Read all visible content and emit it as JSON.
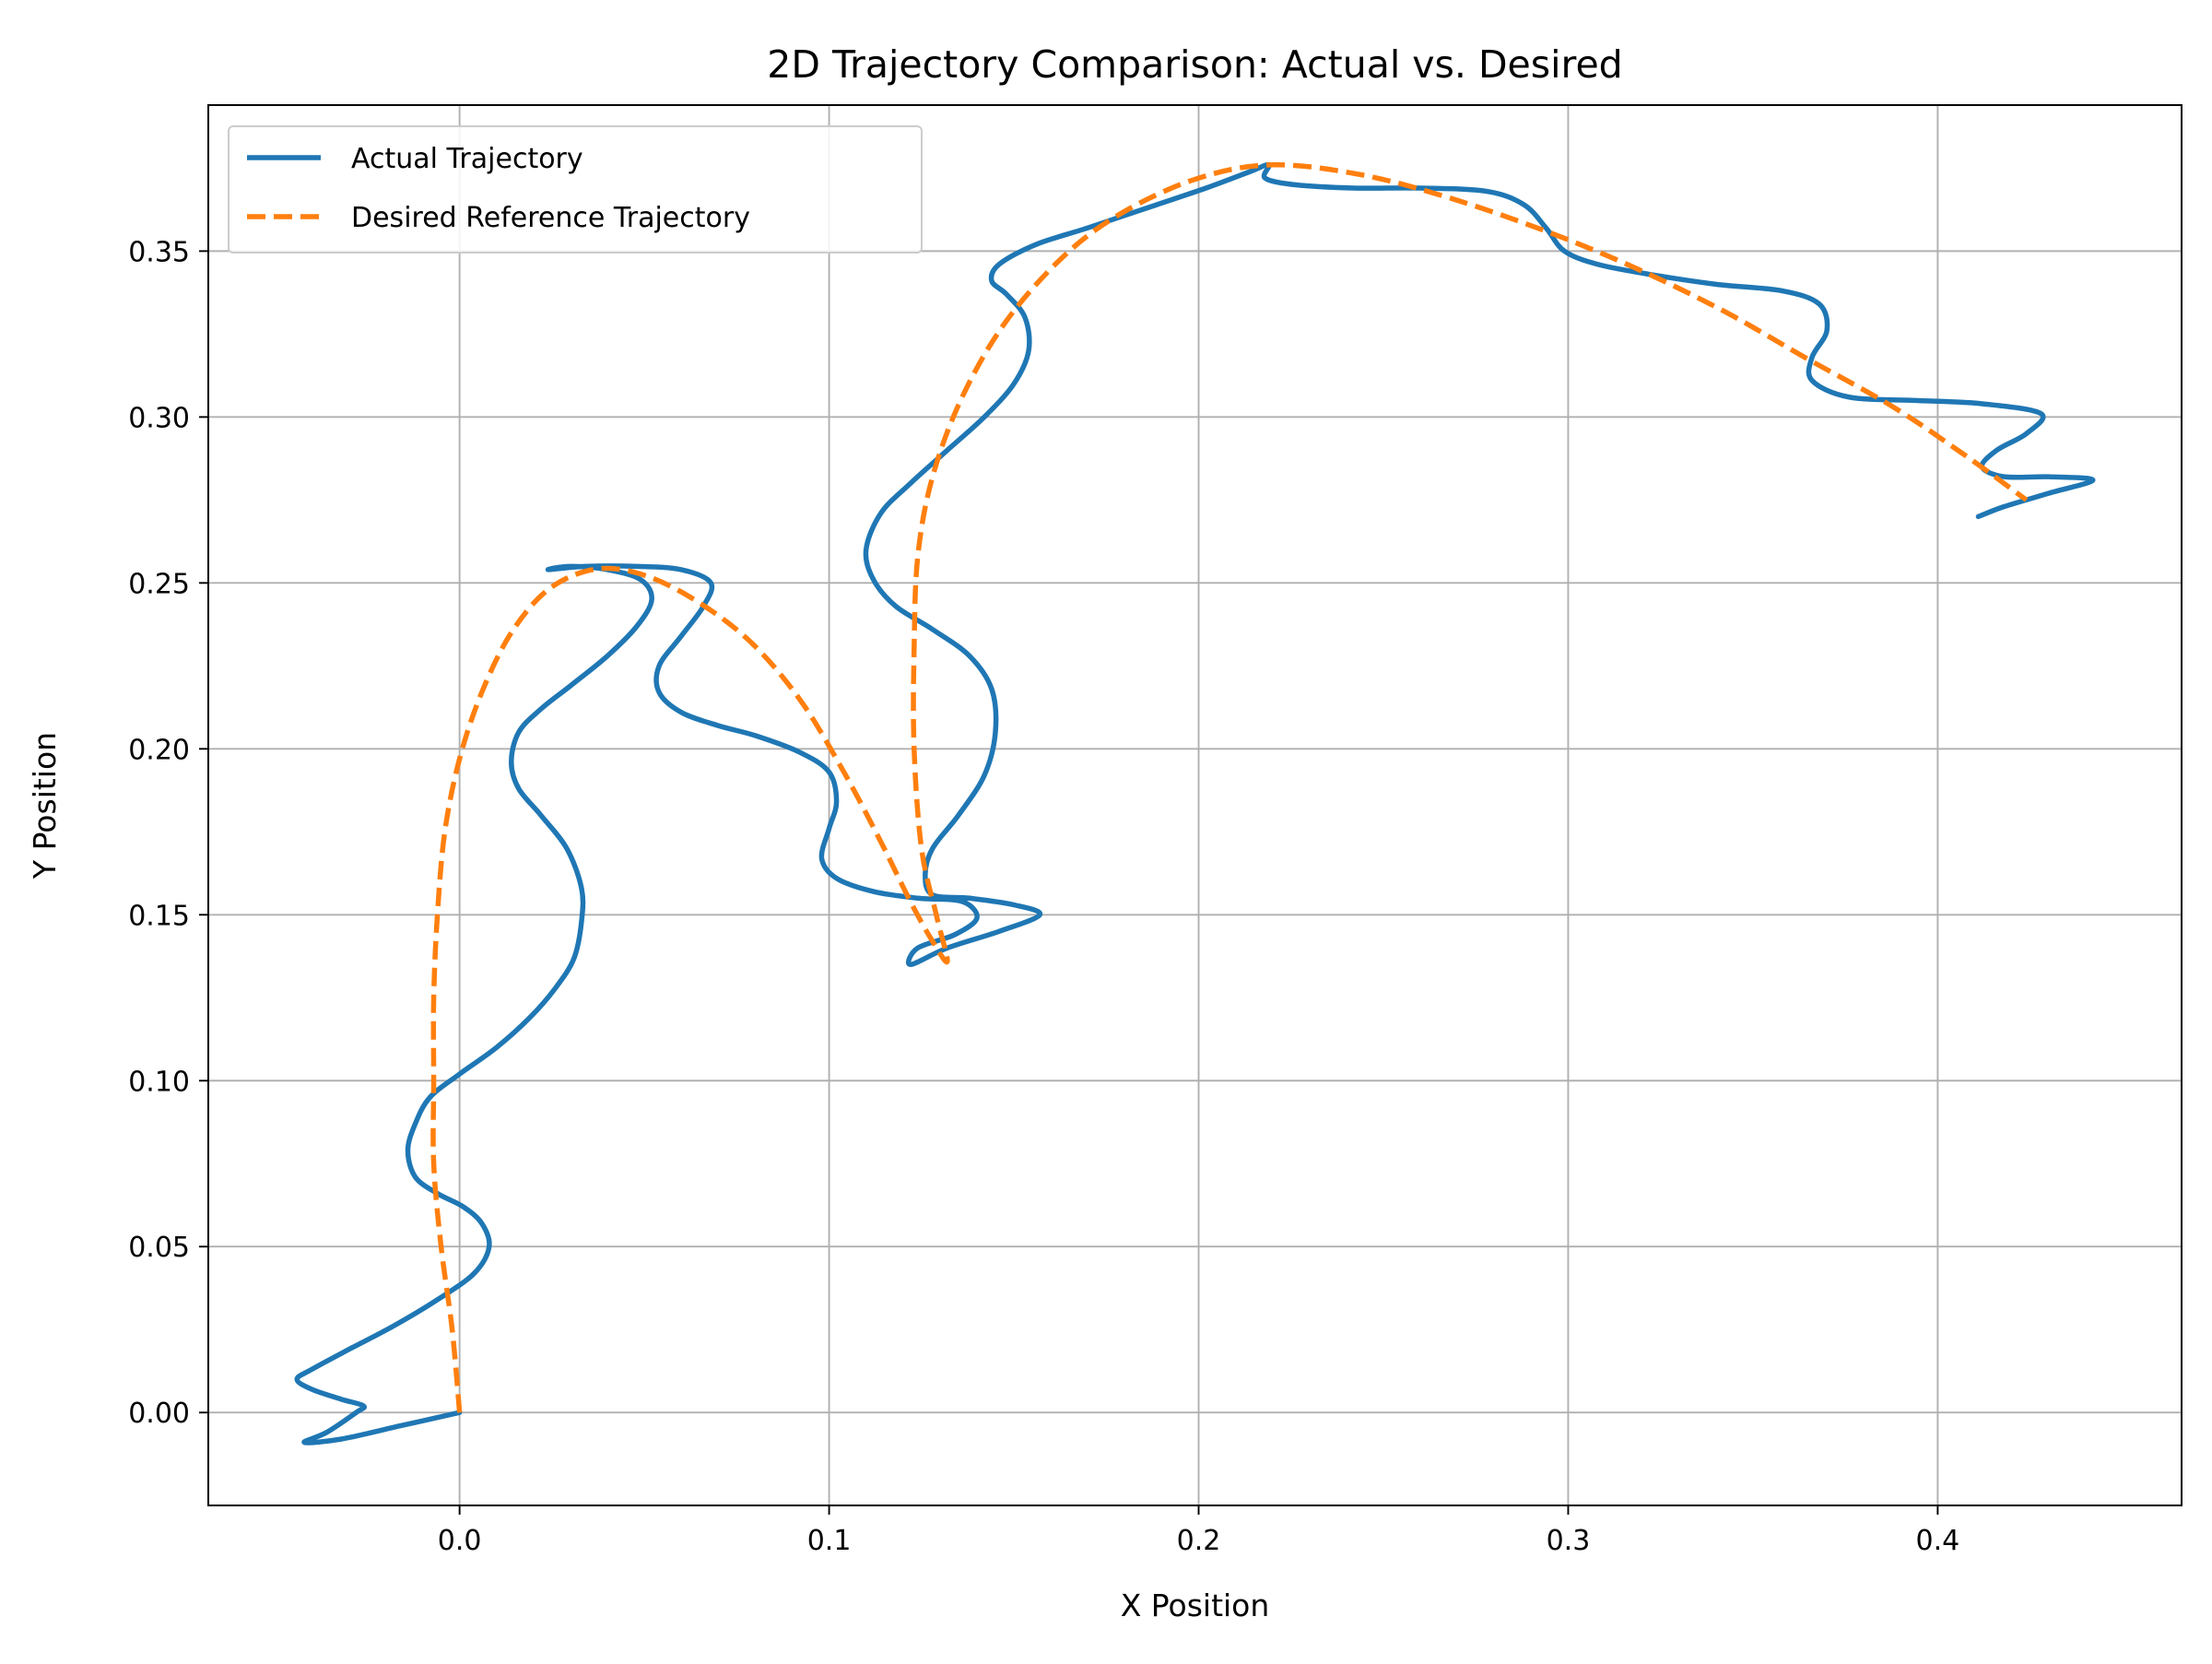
{
  "colors": {
    "actual": "#1f77b4",
    "desired": "#ff7f0e",
    "grid": "#b0b0b0",
    "axes": "#000000",
    "background": "#ffffff"
  },
  "chart_data": {
    "type": "line",
    "title": "2D Trajectory Comparison: Actual vs. Desired",
    "xlabel": "X Position",
    "ylabel": "Y Position",
    "xlim": [
      -0.068,
      0.466
    ],
    "ylim": [
      -0.028,
      0.394
    ],
    "xticks": [
      0.0,
      0.1,
      0.2,
      0.3,
      0.4
    ],
    "xtick_labels": [
      "0.0",
      "0.1",
      "0.2",
      "0.3",
      "0.4"
    ],
    "yticks": [
      0.0,
      0.05,
      0.1,
      0.15,
      0.2,
      0.25,
      0.3,
      0.35
    ],
    "ytick_labels": [
      "0.00",
      "0.05",
      "0.10",
      "0.15",
      "0.20",
      "0.25",
      "0.30",
      "0.35"
    ],
    "grid": true,
    "legend_position": "upper left",
    "series": [
      {
        "name": "Actual Trajectory",
        "style": "solid",
        "color": "#1f77b4",
        "points": [
          [
            0.0,
            0.0
          ],
          [
            -0.016,
            -0.004
          ],
          [
            -0.032,
            -0.008
          ],
          [
            -0.042,
            -0.009
          ],
          [
            -0.036,
            -0.006
          ],
          [
            -0.028,
            0.0
          ],
          [
            -0.026,
            0.002
          ],
          [
            -0.032,
            0.004
          ],
          [
            -0.04,
            0.007
          ],
          [
            -0.044,
            0.01
          ],
          [
            -0.04,
            0.013
          ],
          [
            -0.03,
            0.019
          ],
          [
            -0.018,
            0.026
          ],
          [
            -0.006,
            0.034
          ],
          [
            0.004,
            0.042
          ],
          [
            0.008,
            0.05
          ],
          [
            0.006,
            0.057
          ],
          [
            0.001,
            0.062
          ],
          [
            -0.006,
            0.066
          ],
          [
            -0.012,
            0.071
          ],
          [
            -0.014,
            0.079
          ],
          [
            -0.012,
            0.087
          ],
          [
            -0.008,
            0.095
          ],
          [
            0.0,
            0.102
          ],
          [
            0.01,
            0.11
          ],
          [
            0.019,
            0.119
          ],
          [
            0.026,
            0.128
          ],
          [
            0.031,
            0.137
          ],
          [
            0.033,
            0.148
          ],
          [
            0.033,
            0.158
          ],
          [
            0.029,
            0.17
          ],
          [
            0.022,
            0.18
          ],
          [
            0.016,
            0.188
          ],
          [
            0.014,
            0.196
          ],
          [
            0.016,
            0.205
          ],
          [
            0.022,
            0.212
          ],
          [
            0.03,
            0.219
          ],
          [
            0.04,
            0.228
          ],
          [
            0.048,
            0.237
          ],
          [
            0.052,
            0.245
          ],
          [
            0.049,
            0.251
          ],
          [
            0.04,
            0.254
          ],
          [
            0.03,
            0.255
          ],
          [
            0.024,
            0.254
          ],
          [
            0.034,
            0.255
          ],
          [
            0.048,
            0.255
          ],
          [
            0.06,
            0.254
          ],
          [
            0.068,
            0.25
          ],
          [
            0.066,
            0.243
          ],
          [
            0.06,
            0.234
          ],
          [
            0.054,
            0.225
          ],
          [
            0.054,
            0.217
          ],
          [
            0.06,
            0.211
          ],
          [
            0.07,
            0.207
          ],
          [
            0.08,
            0.204
          ],
          [
            0.092,
            0.199
          ],
          [
            0.1,
            0.193
          ],
          [
            0.102,
            0.184
          ],
          [
            0.1,
            0.176
          ],
          [
            0.098,
            0.167
          ],
          [
            0.102,
            0.161
          ],
          [
            0.112,
            0.157
          ],
          [
            0.124,
            0.155
          ],
          [
            0.136,
            0.154
          ],
          [
            0.14,
            0.149
          ],
          [
            0.134,
            0.144
          ],
          [
            0.124,
            0.14
          ],
          [
            0.122,
            0.135
          ],
          [
            0.132,
            0.14
          ],
          [
            0.146,
            0.145
          ],
          [
            0.157,
            0.15
          ],
          [
            0.15,
            0.153
          ],
          [
            0.138,
            0.155
          ],
          [
            0.128,
            0.156
          ],
          [
            0.126,
            0.162
          ],
          [
            0.128,
            0.17
          ],
          [
            0.135,
            0.18
          ],
          [
            0.142,
            0.192
          ],
          [
            0.145,
            0.205
          ],
          [
            0.144,
            0.218
          ],
          [
            0.138,
            0.228
          ],
          [
            0.128,
            0.236
          ],
          [
            0.118,
            0.243
          ],
          [
            0.112,
            0.251
          ],
          [
            0.11,
            0.26
          ],
          [
            0.114,
            0.271
          ],
          [
            0.122,
            0.28
          ],
          [
            0.132,
            0.29
          ],
          [
            0.142,
            0.3
          ],
          [
            0.15,
            0.31
          ],
          [
            0.154,
            0.32
          ],
          [
            0.153,
            0.33
          ],
          [
            0.148,
            0.337
          ],
          [
            0.144,
            0.341
          ],
          [
            0.146,
            0.346
          ],
          [
            0.156,
            0.352
          ],
          [
            0.17,
            0.357
          ],
          [
            0.186,
            0.363
          ],
          [
            0.202,
            0.369
          ],
          [
            0.214,
            0.374
          ],
          [
            0.219,
            0.376
          ],
          [
            0.218,
            0.372
          ],
          [
            0.226,
            0.37
          ],
          [
            0.242,
            0.369
          ],
          [
            0.26,
            0.369
          ],
          [
            0.278,
            0.368
          ],
          [
            0.288,
            0.364
          ],
          [
            0.294,
            0.357
          ],
          [
            0.299,
            0.35
          ],
          [
            0.308,
            0.346
          ],
          [
            0.322,
            0.343
          ],
          [
            0.34,
            0.34
          ],
          [
            0.358,
            0.338
          ],
          [
            0.368,
            0.334
          ],
          [
            0.37,
            0.326
          ],
          [
            0.366,
            0.318
          ],
          [
            0.366,
            0.311
          ],
          [
            0.376,
            0.306
          ],
          [
            0.394,
            0.305
          ],
          [
            0.412,
            0.304
          ],
          [
            0.428,
            0.301
          ],
          [
            0.424,
            0.295
          ],
          [
            0.416,
            0.29
          ],
          [
            0.412,
            0.285
          ],
          [
            0.418,
            0.282
          ],
          [
            0.43,
            0.282
          ],
          [
            0.442,
            0.281
          ],
          [
            0.43,
            0.277
          ],
          [
            0.418,
            0.273
          ],
          [
            0.411,
            0.27
          ]
        ]
      },
      {
        "name": "Desired Reference Trajectory",
        "style": "dashed",
        "color": "#ff7f0e",
        "points": [
          [
            0.0,
            0.0
          ],
          [
            -0.002,
            0.025
          ],
          [
            -0.005,
            0.05
          ],
          [
            -0.007,
            0.075
          ],
          [
            -0.007,
            0.1
          ],
          [
            -0.007,
            0.125
          ],
          [
            -0.006,
            0.15
          ],
          [
            -0.004,
            0.175
          ],
          [
            0.0,
            0.197
          ],
          [
            0.006,
            0.217
          ],
          [
            0.014,
            0.235
          ],
          [
            0.024,
            0.248
          ],
          [
            0.036,
            0.254
          ],
          [
            0.048,
            0.253
          ],
          [
            0.062,
            0.246
          ],
          [
            0.078,
            0.233
          ],
          [
            0.092,
            0.215
          ],
          [
            0.104,
            0.193
          ],
          [
            0.114,
            0.172
          ],
          [
            0.122,
            0.154
          ],
          [
            0.128,
            0.142
          ],
          [
            0.132,
            0.136
          ],
          [
            0.129,
            0.15
          ],
          [
            0.125,
            0.17
          ],
          [
            0.123,
            0.2
          ],
          [
            0.123,
            0.23
          ],
          [
            0.124,
            0.258
          ],
          [
            0.128,
            0.282
          ],
          [
            0.136,
            0.306
          ],
          [
            0.148,
            0.329
          ],
          [
            0.164,
            0.349
          ],
          [
            0.18,
            0.362
          ],
          [
            0.2,
            0.372
          ],
          [
            0.22,
            0.376
          ],
          [
            0.244,
            0.373
          ],
          [
            0.268,
            0.366
          ],
          [
            0.294,
            0.356
          ],
          [
            0.318,
            0.345
          ],
          [
            0.342,
            0.332
          ],
          [
            0.364,
            0.318
          ],
          [
            0.388,
            0.303
          ],
          [
            0.408,
            0.288
          ],
          [
            0.424,
            0.275
          ]
        ]
      }
    ]
  }
}
